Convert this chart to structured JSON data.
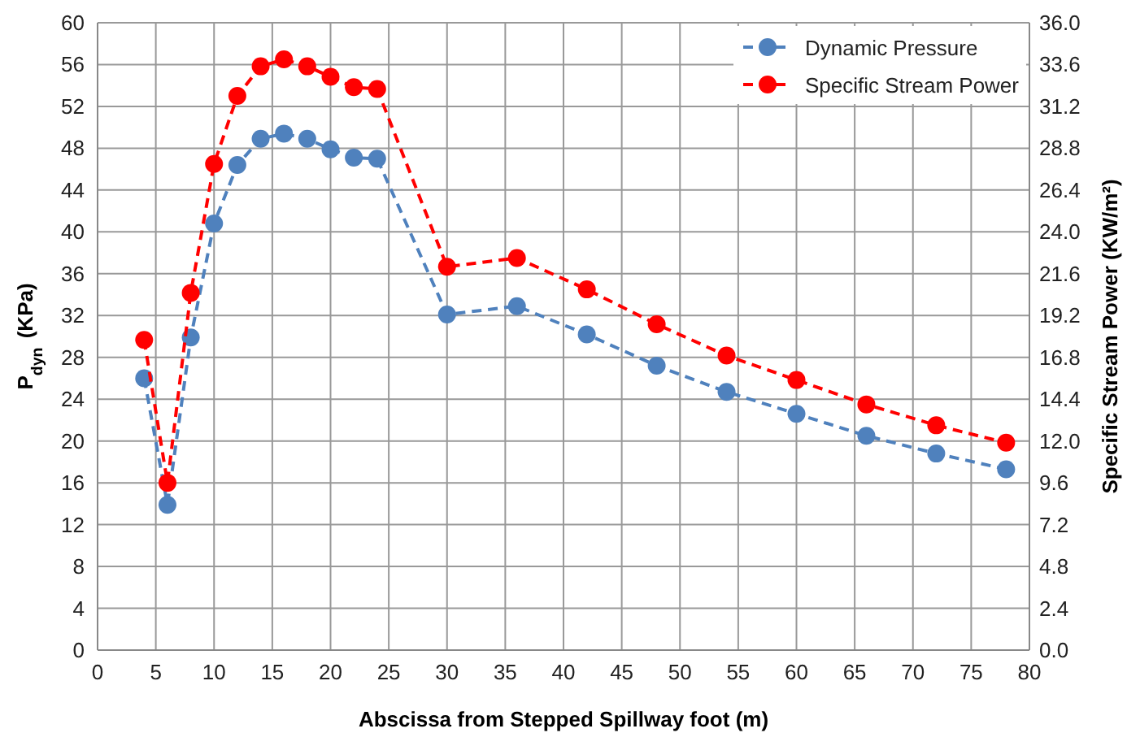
{
  "chart_data": {
    "type": "line",
    "xlabel": "Abscissa from Stepped Spillway foot (m)",
    "ylabel": "P$_{dyn}$ (KPa)",
    "y2label": "Specific Stream Power (KW/m²)",
    "x": [
      4,
      6,
      8,
      10,
      12,
      14,
      16,
      18,
      20,
      22,
      24,
      30,
      36,
      42,
      48,
      54,
      60,
      66,
      72,
      78
    ],
    "series": [
      {
        "name": "Dynamic Pressure",
        "color": "#4f81bd",
        "values": [
          26,
          13.9,
          29.9,
          40.8,
          46.4,
          48.9,
          49.4,
          48.9,
          47.9,
          47.1,
          47.0,
          32.1,
          32.9,
          30.2,
          27.2,
          24.7,
          22.6,
          20.5,
          18.8,
          17.3
        ]
      },
      {
        "name": "Specific Stream Power",
        "color": "#ff0000",
        "axis": "y2",
        "values": [
          17.8,
          9.6,
          20.5,
          27.9,
          31.8,
          33.5,
          33.9,
          33.5,
          32.9,
          32.3,
          32.2,
          22.0,
          22.5,
          20.7,
          18.7,
          16.9,
          15.5,
          14.1,
          12.9,
          11.9
        ]
      }
    ],
    "xlim": [
      0,
      80
    ],
    "xticks": [
      0,
      5,
      10,
      15,
      20,
      25,
      30,
      35,
      40,
      45,
      50,
      55,
      60,
      65,
      70,
      75,
      80
    ],
    "ylim": [
      0,
      60
    ],
    "yticks": [
      0,
      4,
      8,
      12,
      16,
      20,
      24,
      28,
      32,
      36,
      40,
      44,
      48,
      52,
      56,
      60
    ],
    "y2lim": [
      0,
      36
    ],
    "y2ticks": [
      {
        "value": 0,
        "label": "0.0"
      },
      2.4,
      4.8,
      7.2,
      9.6,
      {
        "value": 12,
        "label": "12.0"
      },
      14.4,
      16.8,
      19.2,
      21.6,
      {
        "value": 24,
        "label": "24.0"
      },
      26.4,
      28.8,
      31.2,
      33.6,
      {
        "value": 36,
        "label": "36.0"
      }
    ],
    "grid": true,
    "legend": "top right",
    "marker": "circle",
    "line_style": "dashed"
  }
}
